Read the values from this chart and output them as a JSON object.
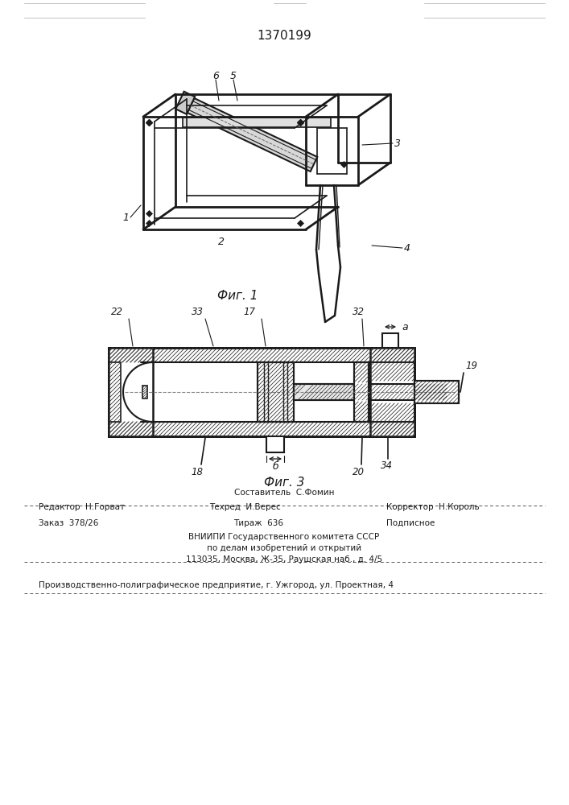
{
  "title": "1370199",
  "fig1_caption": "Фиг. 1",
  "fig3_caption": "Фиг. 3",
  "bg_color": "#ffffff",
  "line_color": "#1a1a1a",
  "footer": {
    "line1_center": "Составитель  С.Фомин",
    "line2_left": "Редактор  Н.Горват",
    "line2_center": "Техред  И.Верес",
    "line2_right": "Корректор  Н.Король",
    "line3_left": "Заказ  378/26",
    "line3_center": "Тираж  636",
    "line3_right": "Подписное",
    "line4": "ВНИИПИ Государственного комитета СССР",
    "line5": "по делам изобретений и открытий",
    "line6": "113035, Москва, Ж-35, Раушская наб., д. 4/5",
    "line7": "Производственно-полиграфическое предприятие, г. Ужгород, ул. Проектная, 4"
  }
}
